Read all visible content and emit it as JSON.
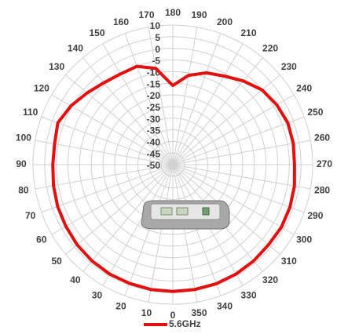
{
  "chart_data": {
    "type": "polar",
    "theta": [
      0,
      10,
      20,
      30,
      40,
      50,
      60,
      70,
      80,
      90,
      100,
      110,
      120,
      130,
      140,
      150,
      160,
      170,
      180,
      190,
      200,
      210,
      220,
      230,
      240,
      250,
      260,
      270,
      280,
      290,
      300,
      310,
      320,
      330,
      340,
      350
    ],
    "ylim": [
      -50,
      10
    ],
    "yticks": [
      10,
      5,
      0,
      -5,
      -10,
      -15,
      -20,
      -25,
      -30,
      -35,
      -40,
      -45,
      -50
    ],
    "grid": true,
    "legend": "bottom",
    "series": [
      {
        "name": "5.6GHz",
        "color": "#e31010",
        "values": [
          4.5,
          4.5,
          4.3,
          4.3,
          4,
          3.6,
          3,
          2.6,
          2,
          1.5,
          1.5,
          2.5,
          0.5,
          -2,
          -4,
          -5,
          -5,
          -8,
          -16,
          -11,
          -8,
          -6,
          -3,
          0,
          1.5,
          2.5,
          2.5,
          2.2,
          3,
          3.5,
          3.8,
          3.6,
          4,
          4.3,
          4.5,
          4.5
        ]
      }
    ]
  }
}
